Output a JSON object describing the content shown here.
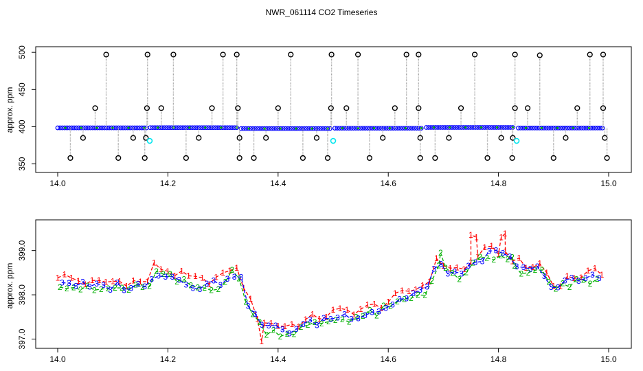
{
  "title": "NWR_061114  CO2 Timeseries",
  "colors": {
    "frame": "#000000",
    "top_line": "#9a9a9a",
    "top_points": "#0000ff",
    "top_outlier": "#000000",
    "top_cyan": "#00e5ee",
    "top_green": "#00b000",
    "series1": "#ff0000",
    "series2": "#00b000",
    "series3": "#0000ff"
  },
  "chart_data": [
    {
      "type": "scatter",
      "panel": "top",
      "title": "NWR_061114  CO2 Timeseries",
      "xlabel": "",
      "ylabel": "approx. ppm",
      "xlim": [
        14.0,
        15.0
      ],
      "ylim": [
        345,
        502
      ],
      "x_ticks": [
        14.0,
        14.2,
        14.4,
        14.6,
        14.8,
        15.0
      ],
      "x_tick_labels": [
        "14.0",
        "14.2",
        "14.4",
        "14.6",
        "14.8",
        "15.0"
      ],
      "y_ticks": [
        350,
        400,
        450,
        500
      ],
      "y_tick_labels": [
        "350",
        "400",
        "450",
        "500"
      ],
      "baseline_segments": [
        {
          "x": [
            14.0,
            14.162
          ],
          "y": [
            398.5,
            398.5
          ]
        },
        {
          "x": [
            14.168,
            14.327
          ],
          "y": [
            398.8,
            398.8
          ]
        },
        {
          "x": [
            14.333,
            14.497
          ],
          "y": [
            397.5,
            397.5
          ]
        },
        {
          "x": [
            14.503,
            14.663
          ],
          "y": [
            398.0,
            398.0
          ]
        },
        {
          "x": [
            14.669,
            14.83
          ],
          "y": [
            399.0,
            399.0
          ]
        },
        {
          "x": [
            14.836,
            14.99
          ],
          "y": [
            398.3,
            398.3
          ]
        }
      ],
      "high_spikes": [
        {
          "x": 14.088,
          "y": 497
        },
        {
          "x": 14.163,
          "y": 497
        },
        {
          "x": 14.21,
          "y": 497
        },
        {
          "x": 14.3,
          "y": 497
        },
        {
          "x": 14.325,
          "y": 497
        },
        {
          "x": 14.423,
          "y": 497
        },
        {
          "x": 14.497,
          "y": 497
        },
        {
          "x": 14.545,
          "y": 497
        },
        {
          "x": 14.633,
          "y": 497
        },
        {
          "x": 14.655,
          "y": 497
        },
        {
          "x": 14.757,
          "y": 497
        },
        {
          "x": 14.83,
          "y": 497
        },
        {
          "x": 14.875,
          "y": 496
        },
        {
          "x": 14.966,
          "y": 497
        },
        {
          "x": 14.99,
          "y": 497
        }
      ],
      "mid_spikes": [
        {
          "x": 14.068,
          "y": 425
        },
        {
          "x": 14.162,
          "y": 425
        },
        {
          "x": 14.188,
          "y": 425
        },
        {
          "x": 14.28,
          "y": 425
        },
        {
          "x": 14.327,
          "y": 425
        },
        {
          "x": 14.4,
          "y": 425
        },
        {
          "x": 14.496,
          "y": 425
        },
        {
          "x": 14.524,
          "y": 425
        },
        {
          "x": 14.612,
          "y": 425
        },
        {
          "x": 14.655,
          "y": 425
        },
        {
          "x": 14.732,
          "y": 425
        },
        {
          "x": 14.83,
          "y": 425
        },
        {
          "x": 14.853,
          "y": 425
        },
        {
          "x": 14.943,
          "y": 425
        },
        {
          "x": 14.99,
          "y": 425
        }
      ],
      "low_spikes": [
        {
          "x": 14.023,
          "y": 358
        },
        {
          "x": 14.046,
          "y": 385
        },
        {
          "x": 14.11,
          "y": 358
        },
        {
          "x": 14.137,
          "y": 385
        },
        {
          "x": 14.158,
          "y": 358
        },
        {
          "x": 14.16,
          "y": 385
        },
        {
          "x": 14.233,
          "y": 358
        },
        {
          "x": 14.256,
          "y": 385
        },
        {
          "x": 14.33,
          "y": 358
        },
        {
          "x": 14.33,
          "y": 385
        },
        {
          "x": 14.356,
          "y": 358
        },
        {
          "x": 14.378,
          "y": 385
        },
        {
          "x": 14.445,
          "y": 358
        },
        {
          "x": 14.47,
          "y": 385
        },
        {
          "x": 14.49,
          "y": 358
        },
        {
          "x": 14.566,
          "y": 358
        },
        {
          "x": 14.59,
          "y": 385
        },
        {
          "x": 14.658,
          "y": 358
        },
        {
          "x": 14.658,
          "y": 385
        },
        {
          "x": 14.685,
          "y": 358
        },
        {
          "x": 14.71,
          "y": 385
        },
        {
          "x": 14.78,
          "y": 358
        },
        {
          "x": 14.805,
          "y": 385
        },
        {
          "x": 14.825,
          "y": 358
        },
        {
          "x": 14.826,
          "y": 385
        },
        {
          "x": 14.9,
          "y": 358
        },
        {
          "x": 14.922,
          "y": 385
        },
        {
          "x": 14.993,
          "y": 385
        },
        {
          "x": 14.997,
          "y": 358
        }
      ],
      "cyan_points": [
        {
          "x": 14.167,
          "y": 381
        },
        {
          "x": 14.5,
          "y": 381
        },
        {
          "x": 14.833,
          "y": 381
        }
      ]
    },
    {
      "type": "line",
      "panel": "bottom",
      "xlabel": "",
      "ylabel": "approx. ppm",
      "xlim": [
        14.0,
        15.0
      ],
      "ylim": [
        396.9,
        399.6
      ],
      "x_ticks": [
        14.0,
        14.2,
        14.4,
        14.6,
        14.8,
        15.0
      ],
      "x_tick_labels": [
        "14.0",
        "14.2",
        "14.4",
        "14.6",
        "14.8",
        "15.0"
      ],
      "y_ticks": [
        397.0,
        398.0,
        399.0
      ],
      "y_tick_labels": [
        "397.0",
        "398.0",
        "399.0"
      ],
      "series": [
        {
          "name": "1",
          "marker": "1",
          "line_style": "dashed",
          "color": "#ff0000",
          "x_start": 14.0,
          "x_step": 0.0125,
          "offset": 0.1,
          "spikes": [
            {
              "x": 14.75,
              "y": 399.35
            },
            {
              "x": 14.76,
              "y": 399.3
            },
            {
              "x": 14.805,
              "y": 399.3
            },
            {
              "x": 14.812,
              "y": 399.38
            },
            {
              "x": 14.37,
              "y": 396.95
            }
          ]
        },
        {
          "name": "2",
          "marker": "2",
          "line_style": "dashed",
          "color": "#00b000",
          "x_start": 14.004,
          "x_step": 0.0125,
          "offset": -0.06,
          "spikes": [
            {
              "x": 14.695,
              "y": 398.95
            },
            {
              "x": 14.825,
              "y": 398.85
            }
          ]
        },
        {
          "name": "3",
          "marker": "3",
          "line_style": "dashed",
          "color": "#0000ff",
          "x_start": 14.008,
          "x_step": 0.0125,
          "offset": 0.0,
          "spikes": []
        }
      ],
      "trend": {
        "x": [
          14.0,
          14.03,
          14.06,
          14.1,
          14.14,
          14.16,
          14.175,
          14.19,
          14.22,
          14.26,
          14.3,
          14.315,
          14.33,
          14.345,
          14.36,
          14.38,
          14.42,
          14.46,
          14.5,
          14.54,
          14.58,
          14.6,
          14.64,
          14.67,
          14.69,
          14.7,
          14.72,
          14.74,
          14.76,
          14.78,
          14.8,
          14.82,
          14.85,
          14.88,
          14.9,
          14.92,
          14.95,
          14.98
        ],
        "y": [
          398.35,
          398.25,
          398.15,
          398.2,
          398.2,
          398.15,
          398.55,
          398.5,
          398.35,
          398.2,
          398.3,
          398.55,
          398.4,
          397.85,
          397.45,
          397.25,
          397.2,
          397.35,
          397.5,
          397.55,
          397.65,
          397.75,
          398.0,
          398.15,
          398.7,
          398.6,
          398.5,
          398.45,
          398.8,
          398.9,
          398.9,
          398.8,
          398.5,
          398.6,
          398.1,
          398.25,
          398.35,
          398.4
        ]
      }
    }
  ]
}
